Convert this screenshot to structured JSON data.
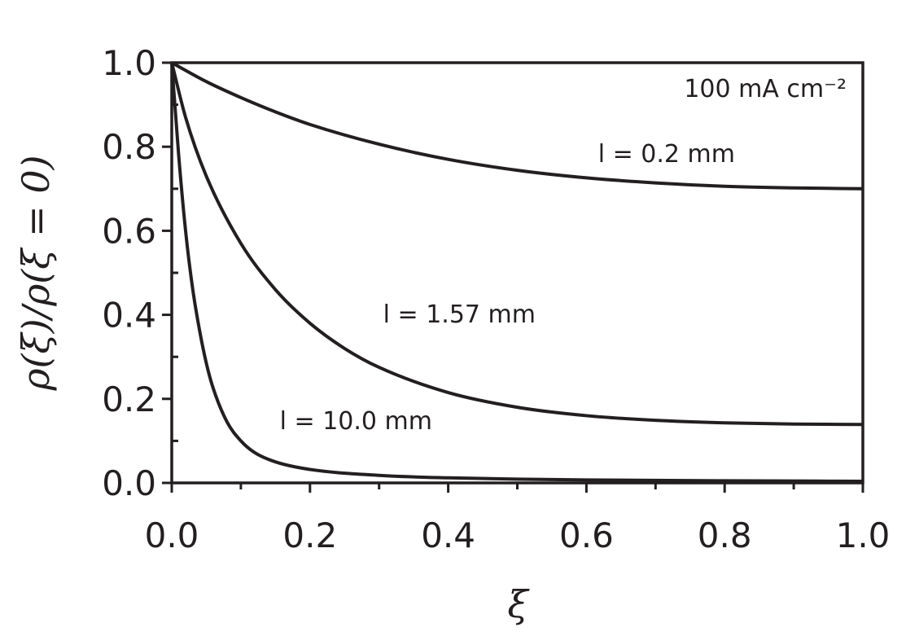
{
  "chart_data": {
    "type": "line",
    "xlabel": "ξ",
    "ylabel": "ρ(ξ)/ρ(ξ = 0)",
    "xlim": [
      0.0,
      1.0
    ],
    "ylim": [
      0.0,
      1.0
    ],
    "x_ticks": [
      "0.0",
      "0.2",
      "0.4",
      "0.6",
      "0.8",
      "1.0"
    ],
    "y_ticks": [
      "0.0",
      "0.2",
      "0.4",
      "0.6",
      "0.8",
      "1.0"
    ],
    "grid": false,
    "annotation": "100 mA cm⁻²",
    "series": [
      {
        "name": "l = 0.2 mm",
        "x": [
          0.0,
          0.05,
          0.1,
          0.15,
          0.2,
          0.3,
          0.4,
          0.5,
          0.6,
          0.7,
          0.8,
          0.9,
          1.0
        ],
        "y": [
          1.0,
          0.955,
          0.917,
          0.883,
          0.853,
          0.806,
          0.77,
          0.744,
          0.726,
          0.714,
          0.706,
          0.702,
          0.7
        ]
      },
      {
        "name": "l = 1.57 mm",
        "x": [
          0.0,
          0.02,
          0.05,
          0.1,
          0.15,
          0.2,
          0.25,
          0.3,
          0.4,
          0.5,
          0.6,
          0.7,
          0.8,
          0.9,
          1.0
        ],
        "y": [
          1.0,
          0.87,
          0.73,
          0.57,
          0.46,
          0.38,
          0.32,
          0.275,
          0.215,
          0.18,
          0.16,
          0.149,
          0.143,
          0.14,
          0.139
        ]
      },
      {
        "name": "l = 10.0 mm",
        "x": [
          0.0,
          0.01,
          0.02,
          0.03,
          0.04,
          0.05,
          0.06,
          0.08,
          0.1,
          0.12,
          0.15,
          0.2,
          0.3,
          0.4,
          0.5,
          0.6,
          0.8,
          1.0
        ],
        "y": [
          1.0,
          0.78,
          0.6,
          0.465,
          0.365,
          0.285,
          0.225,
          0.145,
          0.1,
          0.072,
          0.05,
          0.032,
          0.018,
          0.012,
          0.009,
          0.007,
          0.005,
          0.004
        ]
      }
    ]
  }
}
